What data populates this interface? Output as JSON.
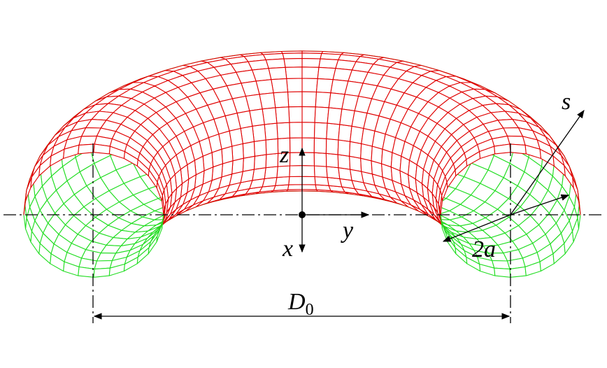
{
  "labels": {
    "s": "s",
    "z": "z",
    "y": "y",
    "x": "x",
    "radius": "2a",
    "diameter": "D",
    "diameter_subscript": "0"
  }
}
